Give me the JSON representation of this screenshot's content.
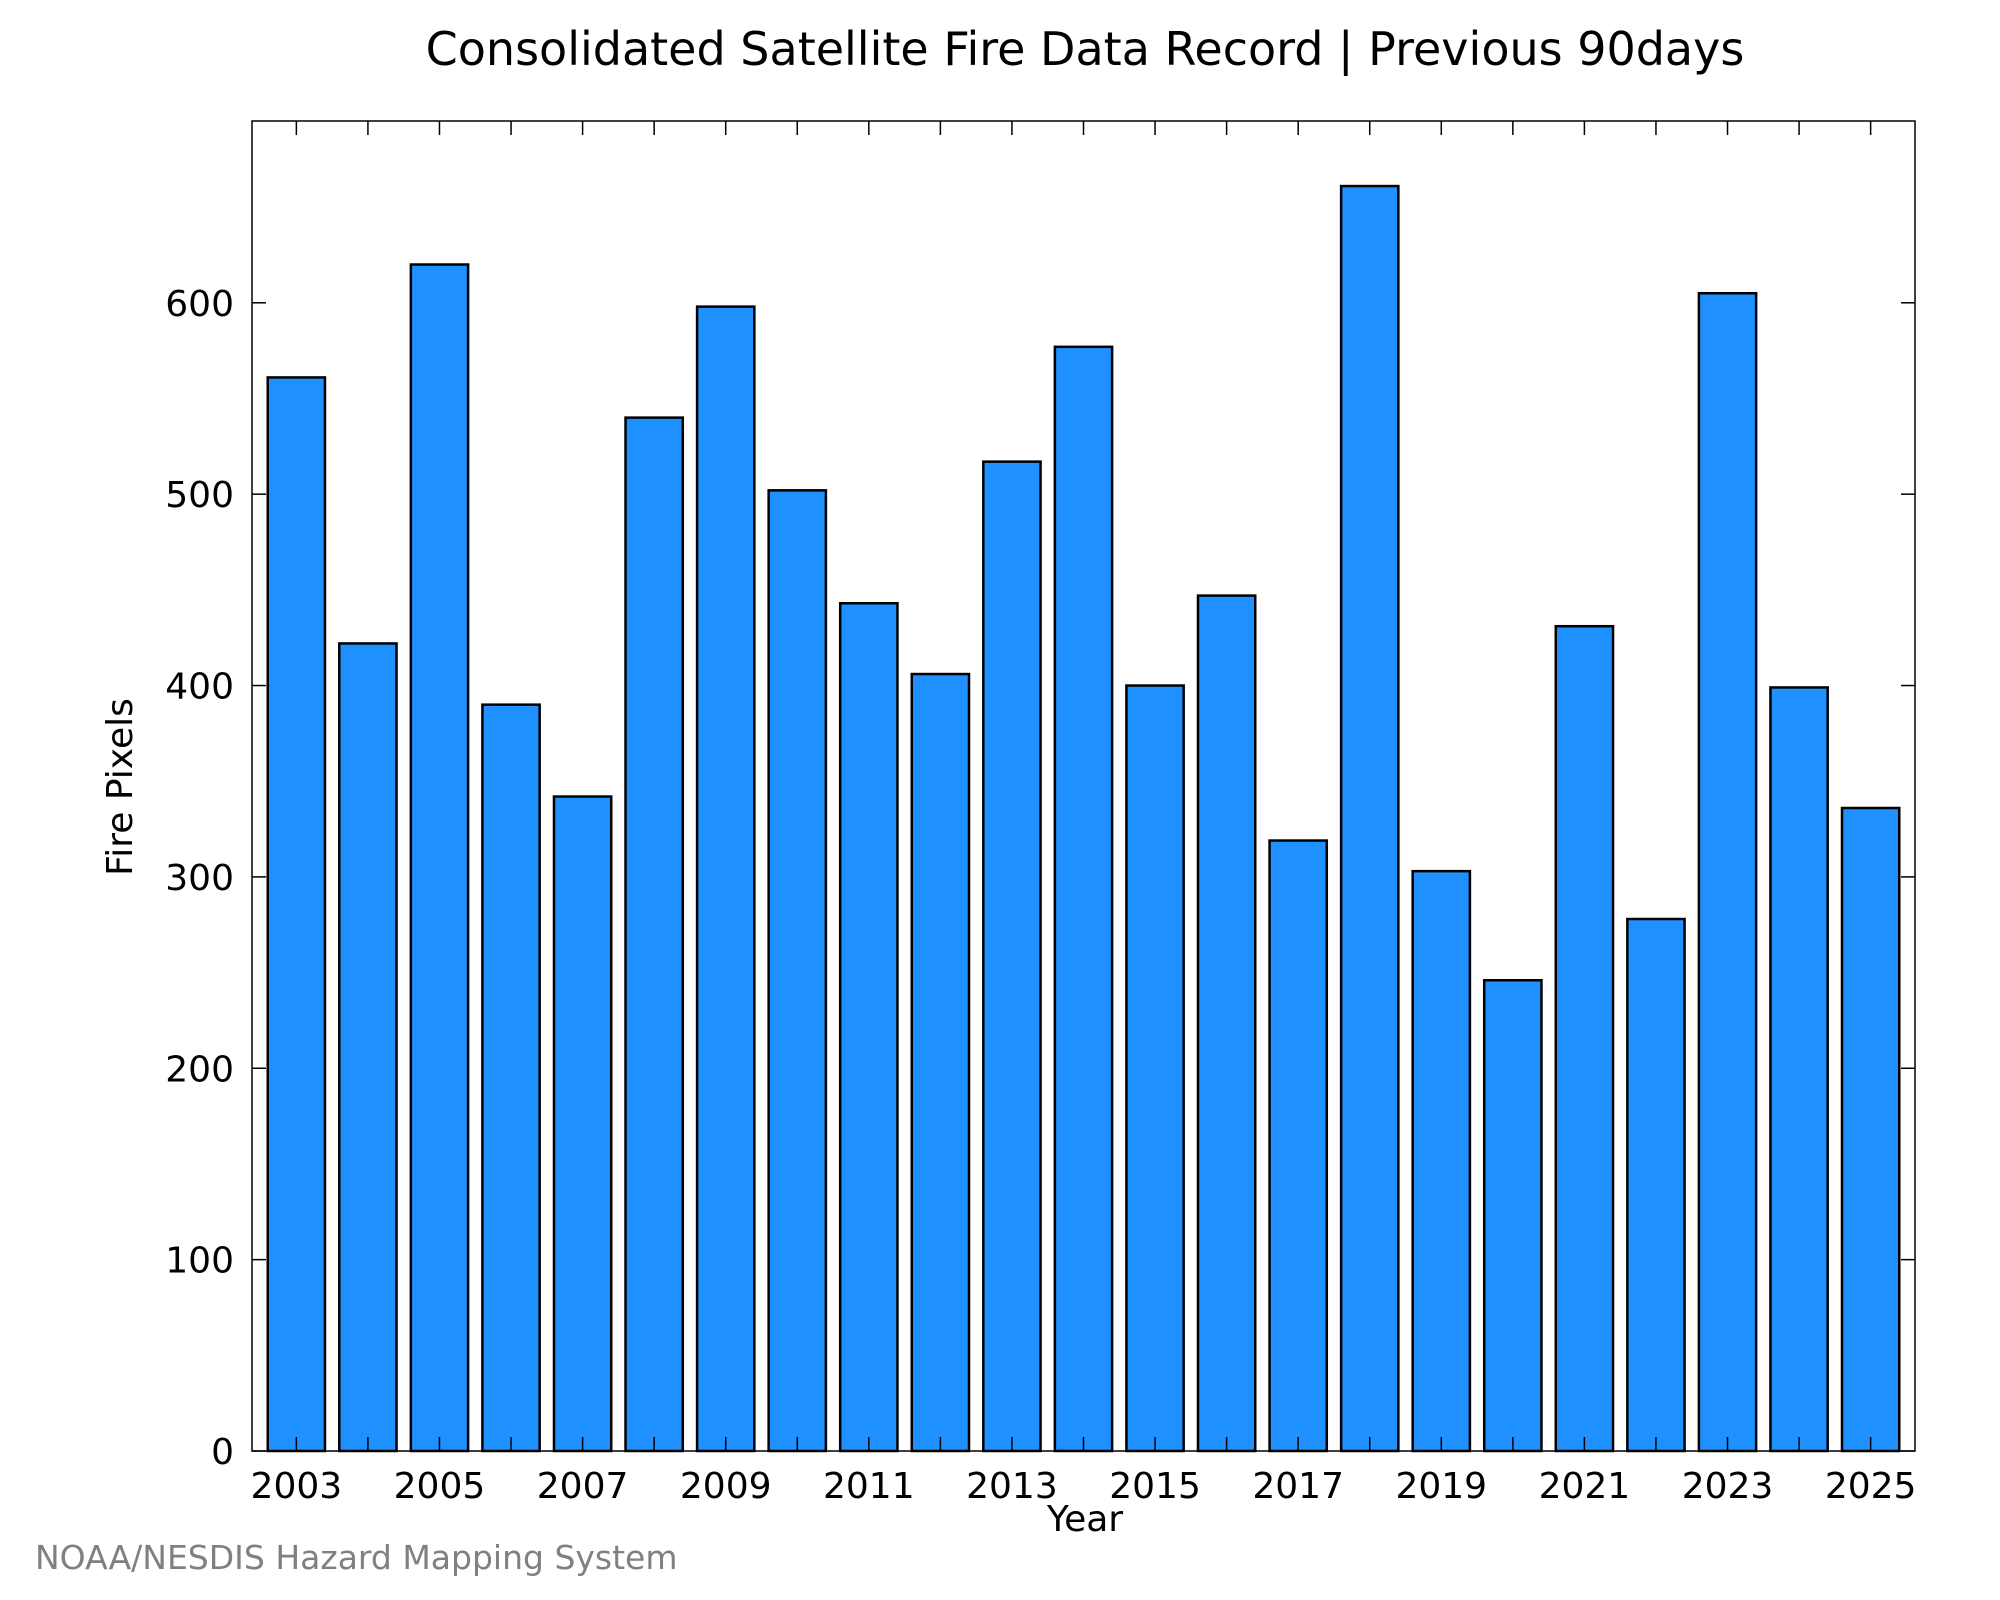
{
  "chart_data": {
    "type": "bar",
    "title": "Consolidated Satellite Fire Data Record | Previous 90days",
    "xlabel": "Year",
    "ylabel": "Fire Pixels",
    "categories": [
      "2003",
      "2004",
      "2005",
      "2006",
      "2007",
      "2008",
      "2009",
      "2010",
      "2011",
      "2012",
      "2013",
      "2014",
      "2015",
      "2016",
      "2017",
      "2018",
      "2019",
      "2020",
      "2021",
      "2022",
      "2023",
      "2024",
      "2025"
    ],
    "values": [
      561,
      422,
      620,
      390,
      342,
      540,
      598,
      502,
      443,
      406,
      517,
      577,
      400,
      447,
      319,
      661,
      303,
      246,
      431,
      278,
      605,
      399,
      336
    ],
    "ylim": [
      0,
      695
    ],
    "yticks": [
      0,
      100,
      200,
      300,
      400,
      500,
      600
    ],
    "xticks": [
      2003,
      2005,
      2007,
      2009,
      2011,
      2013,
      2015,
      2017,
      2019,
      2021,
      2023,
      2025
    ],
    "grid": false,
    "legend": "none",
    "bar_color": "#1e90ff",
    "edge_color": "#000000"
  },
  "credit": "NOAA/NESDIS Hazard Mapping System"
}
